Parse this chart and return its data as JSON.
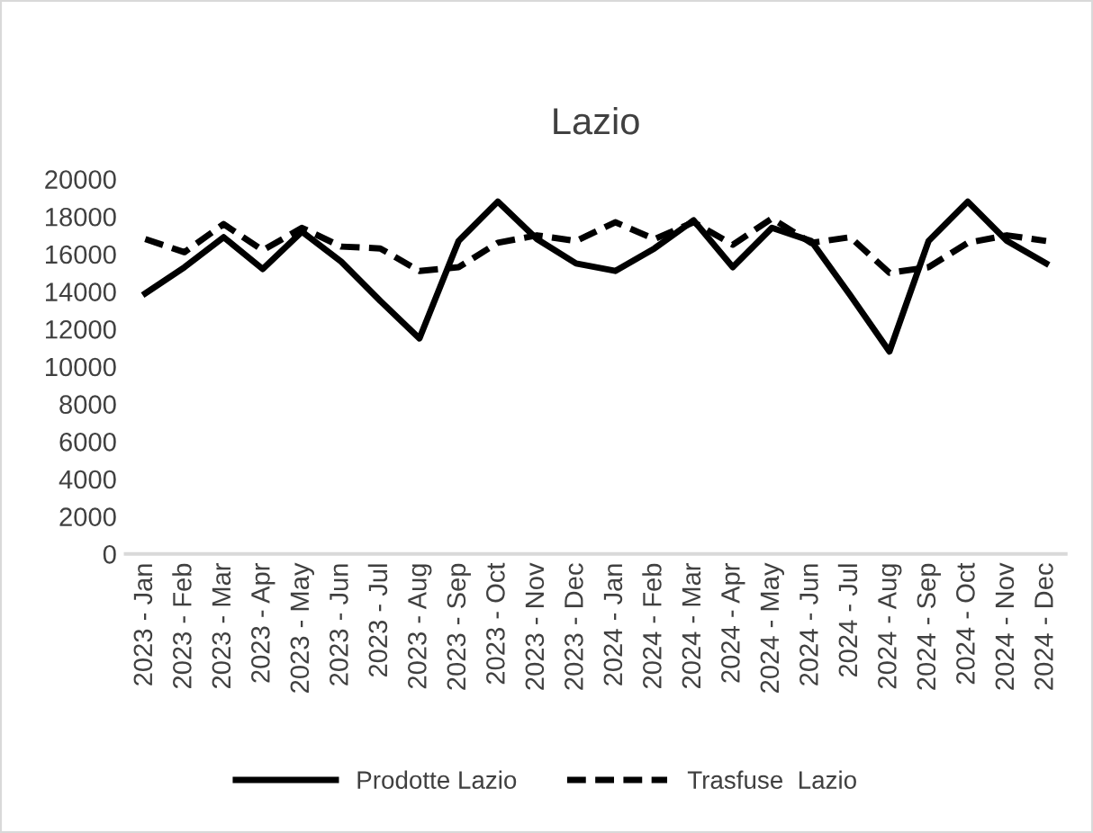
{
  "chart_data": {
    "type": "line",
    "title": "Lazio",
    "categories": [
      "2023 - Jan",
      "2023 - Feb",
      "2023 - Mar",
      "2023 - Apr",
      "2023 - May",
      "2023 - Jun",
      "2023 - Jul",
      "2023 - Aug",
      "2023 - Sep",
      "2023 - Oct",
      "2023 - Nov",
      "2023 - Dec",
      "2024 - Jan",
      "2024 - Feb",
      "2024 - Mar",
      "2024 - Apr",
      "2024 - May",
      "2024 - Jun",
      "2024 - Jul",
      "2024 - Aug",
      "2024 - Sep",
      "2024 - Oct",
      "2024 - Nov",
      "2024 - Dec"
    ],
    "series": [
      {
        "name": "Prodotte Lazio",
        "color": "#000000",
        "line_style": "solid",
        "values": [
          13900,
          15300,
          16900,
          15200,
          17200,
          15600,
          13500,
          11500,
          16700,
          18800,
          16800,
          15500,
          15100,
          16300,
          17800,
          15300,
          17400,
          16700,
          13800,
          10800,
          16700,
          18800,
          16700,
          15500
        ]
      },
      {
        "name": "Trasfuse  Lazio",
        "color": "#000000",
        "line_style": "dashed",
        "values": [
          16800,
          16100,
          17600,
          16200,
          17400,
          16400,
          16300,
          15100,
          15300,
          16600,
          17000,
          16700,
          17700,
          16800,
          17700,
          16500,
          17900,
          16600,
          16900,
          15000,
          15300,
          16600,
          17000,
          16700
        ]
      }
    ],
    "ylim": [
      0,
      20000
    ],
    "yticks": [
      0,
      2000,
      4000,
      6000,
      8000,
      10000,
      12000,
      14000,
      16000,
      18000,
      20000
    ],
    "grid": false,
    "legend": "bottom",
    "marker": "none"
  }
}
